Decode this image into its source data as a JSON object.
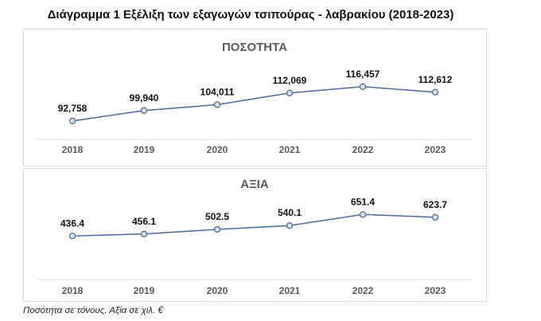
{
  "title": "Διάγραμμα 1 Εξέλιξη των εξαγωγών τσιπούρας - λαβρακίου (2018-2023)",
  "footnote": "Ποσότητα σε τόνους, Αξία σε χιλ. €",
  "chart_data": [
    {
      "type": "line",
      "title": "ΠΟΣΟΤΗΤΑ",
      "categories": [
        "2018",
        "2019",
        "2020",
        "2021",
        "2022",
        "2023"
      ],
      "values": [
        92758,
        99940,
        104011,
        112069,
        116457,
        112612
      ],
      "labels": [
        "92,758",
        "99,940",
        "104,011",
        "112,069",
        "116,457",
        "112,612"
      ],
      "ylim": [
        80000,
        156000
      ],
      "grid": false,
      "color": "#4a6aa5"
    },
    {
      "type": "line",
      "title": "ΑΞΙΑ",
      "categories": [
        "2018",
        "2019",
        "2020",
        "2021",
        "2022",
        "2023"
      ],
      "values": [
        436.4,
        456.1,
        502.5,
        540.1,
        651.4,
        623.7
      ],
      "labels": [
        "436.4",
        "456.1",
        "502.5",
        "540.1",
        "651.4",
        "623.7"
      ],
      "ylim": [
        0,
        1100
      ],
      "grid": false,
      "color": "#4a6aa5"
    }
  ]
}
